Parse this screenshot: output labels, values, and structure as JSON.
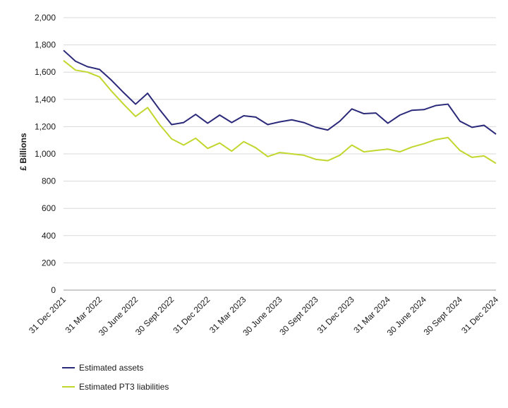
{
  "chart_data": {
    "type": "line",
    "ylabel": "£ Billions",
    "ylim": [
      0,
      2000
    ],
    "yticks": [
      0,
      200,
      400,
      600,
      800,
      1000,
      1200,
      1400,
      1600,
      1800,
      2000
    ],
    "yticklabels": [
      "0",
      "200",
      "400",
      "600",
      "800",
      "1,000",
      "1,200",
      "1,400",
      "1,600",
      "1,800",
      "2,000"
    ],
    "grid": "horizontal",
    "legend_position": "bottom-left",
    "x_count": 37,
    "x_tick_labels": [
      {
        "index": 0,
        "label": "31 Dec 2021"
      },
      {
        "index": 3,
        "label": "31 Mar 2022"
      },
      {
        "index": 6,
        "label": "30 June 2022"
      },
      {
        "index": 9,
        "label": "30 Sept 2022"
      },
      {
        "index": 12,
        "label": "31 Dec 2022"
      },
      {
        "index": 15,
        "label": "31 Mar 2023"
      },
      {
        "index": 18,
        "label": "30 June 2023"
      },
      {
        "index": 21,
        "label": "30 Sept 2023"
      },
      {
        "index": 24,
        "label": "31 Dec 2023"
      },
      {
        "index": 27,
        "label": "31 Mar 2024"
      },
      {
        "index": 30,
        "label": "30 June 2024"
      },
      {
        "index": 33,
        "label": "30 Sept 2024"
      },
      {
        "index": 36,
        "label": "31 Dec 2024"
      }
    ],
    "series": [
      {
        "name": "Estimated assets",
        "color": "#2b2a7a",
        "values": [
          1760,
          1680,
          1640,
          1620,
          1540,
          1450,
          1365,
          1445,
          1325,
          1215,
          1230,
          1290,
          1225,
          1285,
          1230,
          1280,
          1270,
          1215,
          1235,
          1250,
          1230,
          1195,
          1175,
          1240,
          1330,
          1295,
          1300,
          1225,
          1285,
          1320,
          1325,
          1355,
          1365,
          1240,
          1195,
          1210,
          1145
        ]
      },
      {
        "name": "Estimated PT3 liabilities",
        "color": "#c2d62e",
        "values": [
          1685,
          1615,
          1600,
          1565,
          1460,
          1365,
          1275,
          1340,
          1215,
          1110,
          1065,
          1115,
          1040,
          1080,
          1020,
          1090,
          1045,
          980,
          1010,
          1000,
          990,
          960,
          950,
          990,
          1065,
          1015,
          1025,
          1035,
          1015,
          1050,
          1075,
          1105,
          1120,
          1025,
          975,
          985,
          930
        ]
      }
    ]
  }
}
